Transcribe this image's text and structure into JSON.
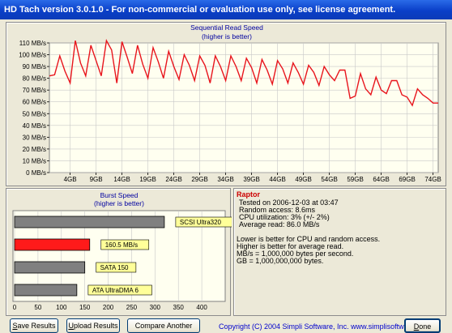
{
  "window": {
    "title": "HD Tach version 3.0.1.0  - For non-commercial or evaluation use only, see license agreement."
  },
  "seq_chart": {
    "title": "Sequential Read Speed",
    "subtitle": "(higher is better)"
  },
  "burst_chart": {
    "title": "Burst Speed",
    "subtitle": "(higher is better)"
  },
  "info": {
    "drive_name": "Raptor",
    "tested_on": "Tested on 2006-12-03 at 03:47",
    "random_access": "Random access: 8.6ms",
    "cpu_utilization": "CPU utilization: 3% (+/- 2%)",
    "average_read": "Average read: 86.0 MB/s",
    "note1": "Lower is better for CPU and random access.",
    "note2": "Higher is better for average read.",
    "note3": "MB/s = 1,000,000 bytes per second.",
    "note4": "GB = 1,000,000,000 bytes."
  },
  "buttons": {
    "save_prefix": "S",
    "save_rest": "ave Results",
    "upload_prefix": "U",
    "upload_rest": "pload Results",
    "compare_label": "Compare Another Drive",
    "done_prefix": "D",
    "done_rest": "one"
  },
  "footer": {
    "copyright": "Copyright (C) 2004 Simpli Software, Inc. www.simplisoftware.com"
  },
  "colors": {
    "series_line": "#e8141c",
    "burst_highlight": "#ff1a1a",
    "burst_bar": "#808080",
    "label_box": "#ffff99",
    "title_blue": "#0000a0",
    "drive_name": "#cc0000"
  },
  "chart_data": [
    {
      "type": "line",
      "title": "Sequential Read Speed",
      "subtitle": "(higher is better)",
      "y_tick_labels": [
        "0 MB/s",
        "10 MB/s",
        "20 MB/s",
        "30 MB/s",
        "40 MB/s",
        "50 MB/s",
        "60 MB/s",
        "70 MB/s",
        "80 MB/s",
        "90 MB/s",
        "100 MB/s",
        "110 MB/s"
      ],
      "x_tick_labels": [
        "4GB",
        "9GB",
        "14GB",
        "19GB",
        "24GB",
        "29GB",
        "34GB",
        "39GB",
        "44GB",
        "49GB",
        "54GB",
        "59GB",
        "64GB",
        "69GB",
        "74GB"
      ],
      "ylim": [
        0,
        110
      ],
      "xlim": [
        0,
        75
      ],
      "grid": true,
      "series": [
        {
          "x": [
            0,
            1,
            2,
            3,
            4,
            5,
            6,
            7,
            8,
            9,
            10,
            11,
            12,
            13,
            14,
            15,
            16,
            17,
            18,
            19,
            20,
            21,
            22,
            23,
            24,
            25,
            26,
            27,
            28,
            29,
            30,
            31,
            32,
            33,
            34,
            35,
            36,
            37,
            38,
            39,
            40,
            41,
            42,
            43,
            44,
            45,
            46,
            47,
            48,
            49,
            50,
            51,
            52,
            53,
            54,
            55,
            56,
            57,
            58,
            59,
            60,
            61,
            62,
            63,
            64,
            65,
            66,
            67,
            68,
            69,
            70,
            71,
            72,
            73,
            74,
            75
          ],
          "y": [
            82,
            83,
            99,
            86,
            76,
            112,
            93,
            82,
            108,
            95,
            82,
            112,
            104,
            76,
            111,
            98,
            84,
            108,
            92,
            80,
            106,
            94,
            80,
            103,
            90,
            79,
            100,
            91,
            78,
            99,
            91,
            76,
            99,
            90,
            78,
            99,
            90,
            78,
            97,
            89,
            76,
            96,
            87,
            75,
            95,
            88,
            76,
            93,
            85,
            75,
            91,
            85,
            74,
            90,
            83,
            78,
            87,
            87,
            63,
            65,
            84,
            71,
            66,
            81,
            70,
            67,
            78,
            78,
            66,
            64,
            57,
            71,
            66,
            63,
            59,
            59
          ]
        }
      ]
    },
    {
      "type": "bar",
      "title": "Burst Speed",
      "subtitle": "(higher is better)",
      "x_tick_labels": [
        "0",
        "50",
        "100",
        "150",
        "200",
        "250",
        "300",
        "350",
        "400"
      ],
      "xlim": [
        0,
        450
      ],
      "grid": true,
      "categories": [
        "SCSI Ultra320",
        "160.5 MB/s",
        "SATA 150",
        "ATA UltraDMA 6"
      ],
      "values": [
        320,
        160.5,
        150,
        133
      ],
      "highlight_index": 1
    }
  ]
}
